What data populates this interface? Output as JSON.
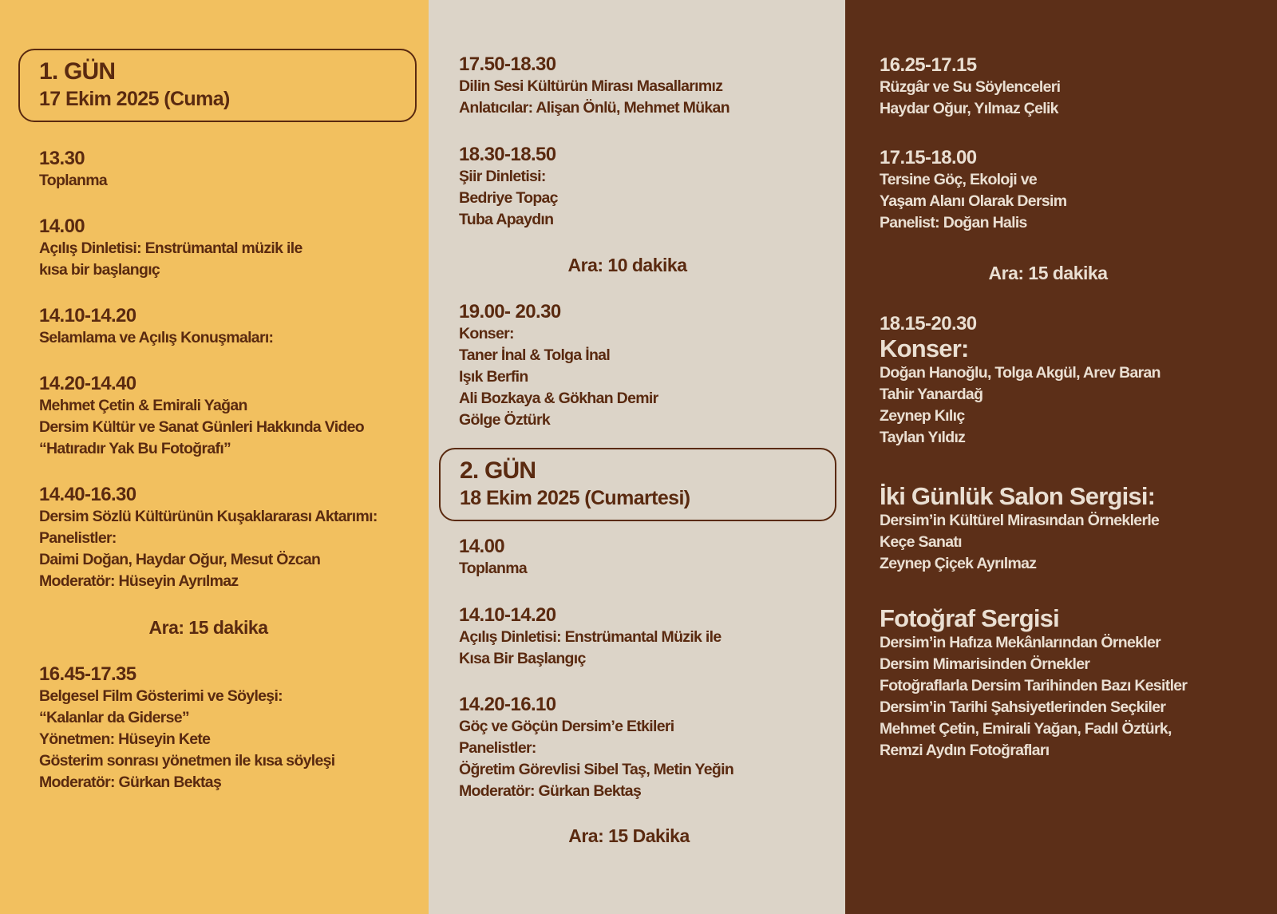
{
  "colors": {
    "column1": "#f2c05f",
    "column2": "#dcd4c8",
    "column3": "#5c2f18",
    "text_dark": "#5a2a10",
    "text_light": "#eadfd2"
  },
  "day1": {
    "title": "1. GÜN",
    "date": "17 Ekim 2025 (Cuma)"
  },
  "day2": {
    "title": "2. GÜN",
    "date": "18 Ekim 2025 (Cumartesi)"
  },
  "col1": [
    {
      "time": "13.30",
      "lines": [
        "Toplanma"
      ]
    },
    {
      "time": "14.00",
      "lines": [
        "Açılış Dinletisi: Enstrümantal müzik ile",
        "kısa bir başlangıç"
      ]
    },
    {
      "time": "14.10-14.20",
      "lines": [
        "Selamlama ve Açılış Konuşmaları:"
      ]
    },
    {
      "time": "14.20-14.40",
      "lines": [
        "Mehmet Çetin & Emirali Yağan",
        "Dersim Kültür ve Sanat Günleri Hakkında Video",
        "“Hatıradır Yak Bu Fotoğrafı”"
      ]
    },
    {
      "time": "14.40-16.30",
      "lines": [
        "Dersim Sözlü Kültürünün Kuşaklararası Aktarımı:",
        "Panelistler:",
        "Daimi Doğan, Haydar Oğur, Mesut Özcan",
        "Moderatör: Hüseyin Ayrılmaz"
      ]
    },
    {
      "time": "16.45-17.35",
      "lines": [
        "Belgesel Film Gösterimi ve Söyleşi:",
        "“Kalanlar da Giderse”",
        "Yönetmen: Hüseyin Kete",
        "Gösterim sonrası yönetmen ile kısa söyleşi",
        "Moderatör: Gürkan Bektaş"
      ]
    }
  ],
  "col1_break": "Ara: 15 dakika",
  "col2": [
    {
      "time": "17.50-18.30",
      "lines": [
        "Dilin Sesi Kültürün Mirası Masallarımız",
        "Anlatıcılar: Alişan Önlü, Mehmet Mükan"
      ]
    },
    {
      "time": "18.30-18.50",
      "lines": [
        "Şiir Dinletisi:",
        "Bedriye Topaç",
        "Tuba Apaydın"
      ]
    },
    {
      "time": "19.00- 20.30",
      "lines": [
        "Konser:",
        "Taner İnal & Tolga İnal",
        "Işık Berfin",
        "Ali Bozkaya & Gökhan Demir",
        "Gölge Öztürk"
      ]
    },
    {
      "time": "14.00",
      "lines": [
        "Toplanma"
      ]
    },
    {
      "time": "14.10-14.20",
      "lines": [
        "Açılış Dinletisi: Enstrümantal Müzik ile",
        "Kısa Bir Başlangıç"
      ]
    },
    {
      "time": "14.20-16.10",
      "lines": [
        "Göç ve Göçün Dersim’e Etkileri",
        "Panelistler:",
        "Öğretim Görevlisi Sibel Taş, Metin Yeğin",
        "Moderatör: Gürkan Bektaş"
      ]
    }
  ],
  "col2_breaks": [
    "Ara: 10 dakika",
    "Ara: 15 Dakika"
  ],
  "col3": [
    {
      "time": "16.25-17.15",
      "lines": [
        "Rüzgâr ve Su Söylenceleri",
        "Haydar Oğur, Yılmaz Çelik"
      ]
    },
    {
      "time": "17.15-18.00",
      "lines": [
        "Tersine Göç, Ekoloji ve",
        "Yaşam Alanı Olarak Dersim",
        "Panelist: Doğan Halis"
      ]
    },
    {
      "time": "18.15-20.30",
      "heading": "Konser:",
      "lines": [
        "Doğan Hanoğlu, Tolga Akgül, Arev Baran",
        "Tahir Yanardağ",
        "Zeynep Kılıç",
        "Taylan Yıldız"
      ]
    },
    {
      "heading": "İki Günlük Salon Sergisi:",
      "lines": [
        "Dersim’in Kültürel Mirasından Örneklerle",
        "Keçe Sanatı",
        "Zeynep Çiçek Ayrılmaz"
      ]
    },
    {
      "heading": "Fotoğraf Sergisi",
      "lines": [
        "Dersim’in Hafıza Mekânlarından Örnekler",
        "Dersim Mimarisinden Örnekler",
        "Fotoğraflarla Dersim Tarihinden Bazı Kesitler",
        "Dersim’in Tarihi Şahsiyetlerinden Seçkiler",
        "Mehmet Çetin, Emirali Yağan, Fadıl Öztürk,",
        "Remzi Aydın Fotoğrafları"
      ]
    }
  ],
  "col3_break": "Ara: 15 dakika"
}
